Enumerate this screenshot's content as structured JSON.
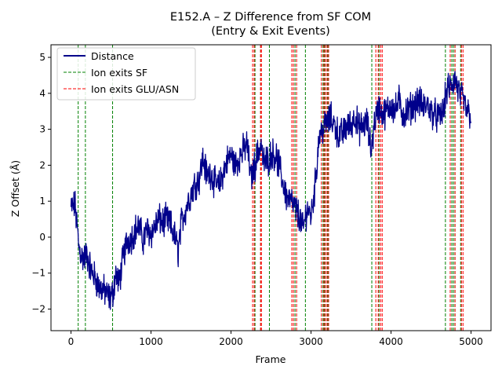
{
  "chart_data": {
    "type": "line",
    "title": "E152.A – Z Difference from SF COM",
    "subtitle": "(Entry & Exit Events)",
    "xlabel": "Frame",
    "ylabel": "Z Offset (Å)",
    "xlim": [
      -250,
      5250
    ],
    "ylim": [
      -2.6,
      5.35
    ],
    "xticks": [
      0,
      1000,
      2000,
      3000,
      4000,
      5000
    ],
    "yticks": [
      -2,
      -1,
      0,
      1,
      2,
      3,
      4,
      5
    ],
    "grid": false,
    "legend_position": "top-left",
    "series": [
      {
        "name": "Distance",
        "color": "#00008b",
        "x": [
          0,
          50,
          100,
          150,
          200,
          260,
          300,
          350,
          420,
          480,
          520,
          560,
          600,
          650,
          700,
          760,
          800,
          850,
          900,
          950,
          1000,
          1050,
          1100,
          1150,
          1200,
          1250,
          1300,
          1340,
          1380,
          1450,
          1500,
          1550,
          1600,
          1650,
          1700,
          1750,
          1800,
          1850,
          1900,
          1950,
          2000,
          2050,
          2100,
          2150,
          2200,
          2250,
          2280,
          2300,
          2340,
          2380,
          2400,
          2450,
          2500,
          2550,
          2600,
          2650,
          2700,
          2750,
          2800,
          2850,
          2900,
          2950,
          3000,
          3050,
          3100,
          3150,
          3200,
          3250,
          3300,
          3350,
          3400,
          3450,
          3500,
          3550,
          3600,
          3650,
          3700,
          3750,
          3800,
          3850,
          3900,
          3950,
          4000,
          4050,
          4100,
          4150,
          4200,
          4250,
          4300,
          4350,
          4400,
          4450,
          4500,
          4550,
          4600,
          4650,
          4700,
          4750,
          4800,
          4850,
          4900,
          4950,
          5000
        ],
        "y": [
          0.8,
          0.9,
          -0.3,
          -0.6,
          -0.5,
          -1.0,
          -1.1,
          -1.4,
          -1.5,
          -1.7,
          -1.6,
          -1.0,
          -1.3,
          -0.6,
          -0.1,
          0.0,
          0.2,
          0.3,
          -0.1,
          0.2,
          0.1,
          0.3,
          0.5,
          0.4,
          0.5,
          0.3,
          0.0,
          -0.4,
          0.4,
          0.9,
          1.2,
          1.5,
          1.6,
          2.2,
          1.7,
          1.8,
          1.5,
          1.4,
          1.8,
          2.1,
          2.3,
          2.0,
          2.2,
          2.4,
          2.6,
          1.6,
          1.9,
          2.0,
          2.4,
          2.6,
          2.1,
          2.1,
          2.3,
          2.3,
          2.0,
          1.5,
          1.1,
          1.0,
          0.8,
          0.6,
          0.2,
          0.8,
          0.6,
          1.4,
          2.8,
          3.0,
          3.2,
          3.3,
          3.1,
          2.8,
          2.9,
          3.1,
          3.1,
          3.4,
          3.0,
          3.1,
          3.2,
          2.4,
          3.3,
          3.6,
          3.4,
          3.5,
          3.7,
          3.5,
          3.8,
          3.4,
          3.5,
          3.6,
          3.7,
          3.8,
          3.6,
          3.7,
          3.5,
          3.4,
          3.3,
          3.5,
          4.1,
          4.2,
          4.4,
          4.0,
          3.8,
          3.5,
          3.4
        ],
        "noise_amplitude": 0.35
      }
    ],
    "events": {
      "ion_exits_sf": {
        "name": "Ion exits SF",
        "color": "#008000",
        "frames": [
          90,
          180,
          520,
          2300,
          2370,
          2480,
          2800,
          2930,
          3150,
          3170,
          3210,
          3760,
          3850,
          4680,
          4760,
          4780,
          4800,
          4870
        ]
      },
      "ion_exits_glu_asn": {
        "name": "Ion exits GLU/ASN",
        "color": "#ff0000",
        "frames": [
          2270,
          2290,
          2370,
          2380,
          2760,
          2780,
          2820,
          3130,
          3160,
          3180,
          3200,
          3220,
          3810,
          3840,
          3870,
          3890,
          4740,
          4800,
          4880,
          4900
        ]
      }
    }
  }
}
